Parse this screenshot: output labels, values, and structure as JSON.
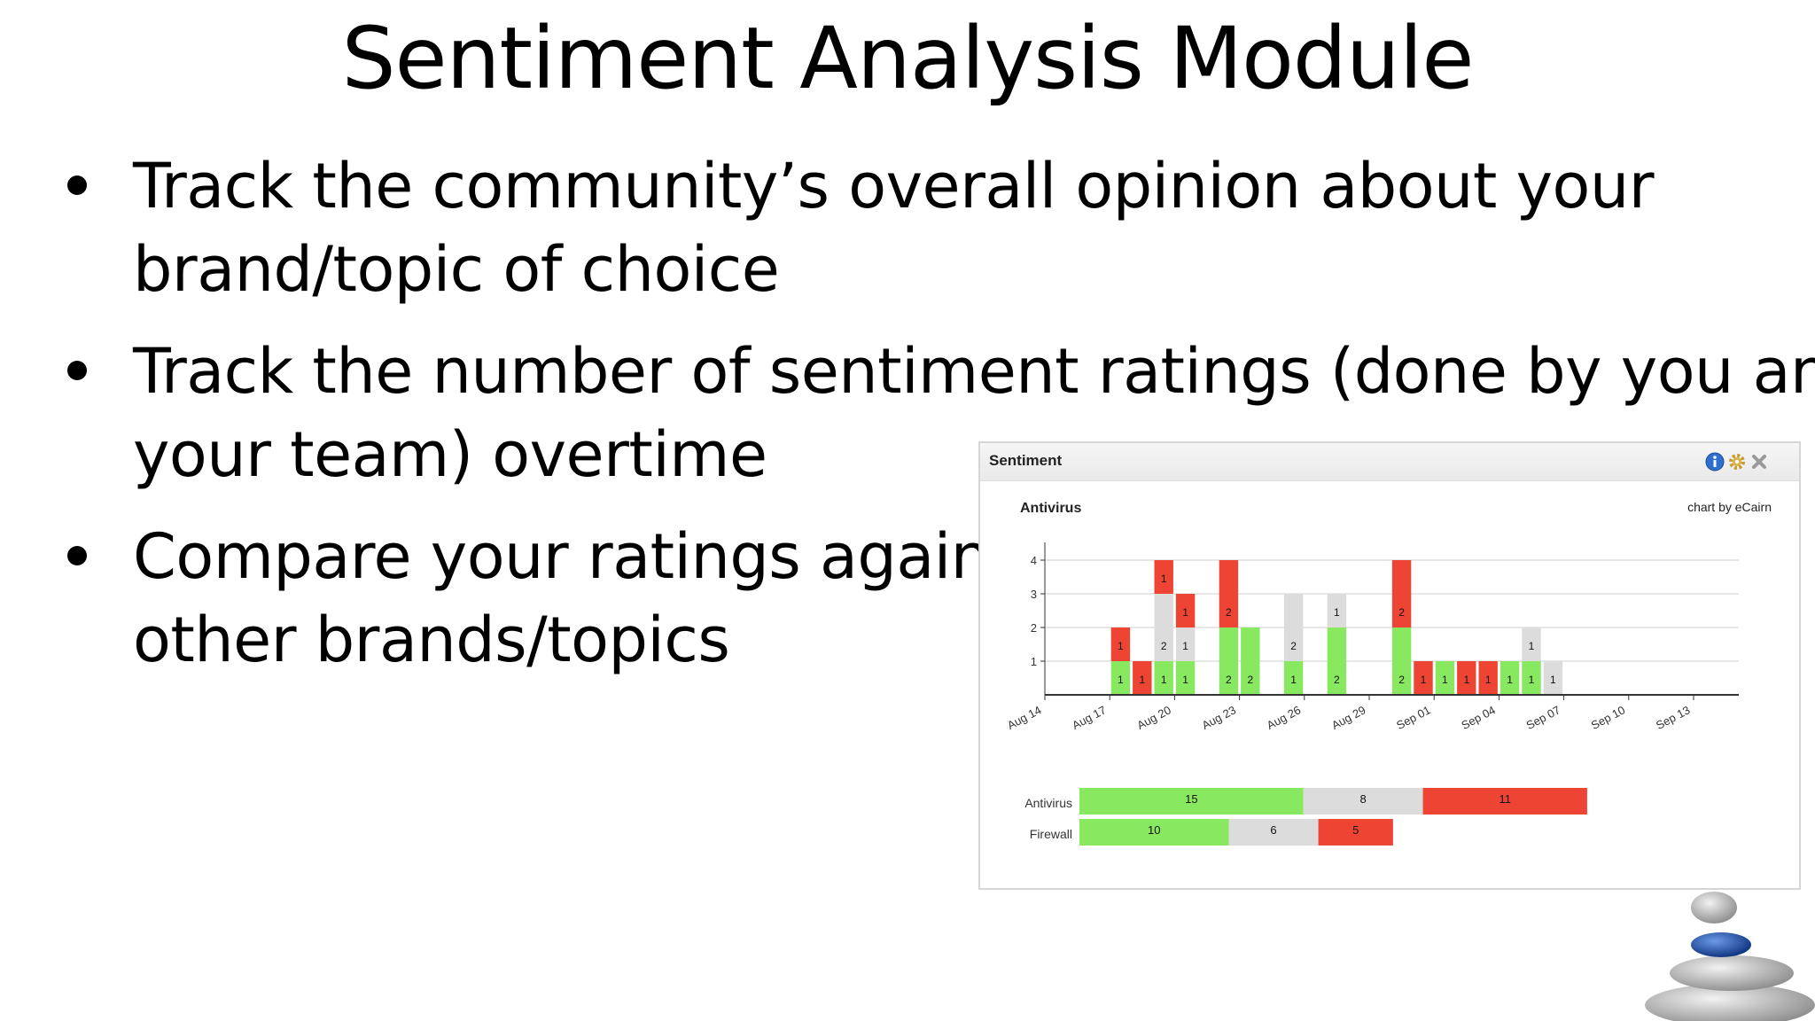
{
  "slide": {
    "title": "Sentiment Analysis Module",
    "bullets": [
      {
        "lines": [
          "Track the community’s overall opinion about your",
          "brand/topic of choice"
        ]
      },
      {
        "lines": [
          "Track the number of sentiment ratings (done by you and",
          "your team) overtime"
        ]
      },
      {
        "lines": [
          "Compare your ratings against",
          "other brands/topics"
        ]
      }
    ]
  },
  "widget": {
    "title": "Sentiment",
    "icons": [
      "info-icon",
      "gear-icon",
      "close-icon"
    ],
    "subtitle": "Antivirus",
    "credit": "chart by eCairn"
  },
  "colors": {
    "positive": "#88e860",
    "neutral": "#dcdcdc",
    "negative": "#ee4433"
  },
  "chart_data": [
    {
      "type": "bar",
      "stacked": true,
      "title": "Antivirus",
      "x_tick_labels": [
        "Aug 14",
        "Aug 17",
        "Aug 20",
        "Aug 23",
        "Aug 26",
        "Aug 29",
        "Sep 01",
        "Sep 04",
        "Sep 07",
        "Sep 10",
        "Sep 13"
      ],
      "x": [
        "Aug 17",
        "Aug 18",
        "Aug 19",
        "Aug 20",
        "Aug 22",
        "Aug 23",
        "Aug 25",
        "Aug 27",
        "Aug 30",
        "Aug 31",
        "Sep 01",
        "Sep 02",
        "Sep 03",
        "Sep 04",
        "Sep 05",
        "Sep 06"
      ],
      "series": [
        {
          "key": "positive",
          "values": [
            1,
            0,
            1,
            1,
            2,
            2,
            1,
            2,
            2,
            0,
            1,
            0,
            0,
            1,
            1,
            0
          ]
        },
        {
          "key": "neutral",
          "values": [
            0,
            0,
            2,
            1,
            0,
            0,
            2,
            1,
            0,
            0,
            0,
            0,
            0,
            0,
            1,
            1
          ]
        },
        {
          "key": "negative",
          "values": [
            1,
            1,
            1,
            1,
            2,
            0,
            0,
            0,
            2,
            1,
            0,
            1,
            1,
            0,
            0,
            0
          ]
        }
      ],
      "y_ticks": [
        1,
        2,
        3,
        4
      ],
      "ylim": [
        0,
        4.5
      ],
      "grid": true
    },
    {
      "type": "bar",
      "orientation": "horizontal",
      "stacked": true,
      "categories": [
        "Antivirus",
        "Firewall"
      ],
      "series": [
        {
          "key": "positive",
          "values": [
            15,
            10
          ]
        },
        {
          "key": "neutral",
          "values": [
            8,
            6
          ]
        },
        {
          "key": "negative",
          "values": [
            11,
            5
          ]
        }
      ]
    }
  ]
}
